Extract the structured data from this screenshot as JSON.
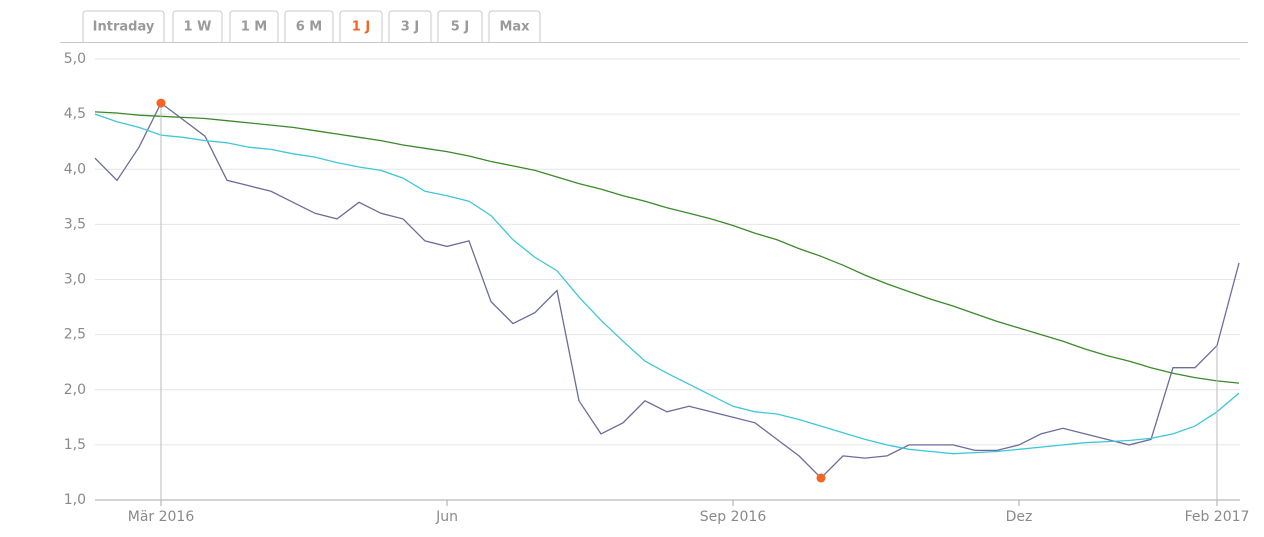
{
  "tabs": [
    "Intraday",
    "1 W",
    "1 M",
    "6 M",
    "1 J",
    "3 J",
    "5 J",
    "Max"
  ],
  "active_tab": 4,
  "chart_data": {
    "type": "line",
    "categories": [
      null,
      null,
      null,
      "Mär 2016",
      null,
      null,
      null,
      null,
      null,
      null,
      null,
      null,
      null,
      null,
      null,
      null,
      "Jun",
      null,
      null,
      null,
      null,
      null,
      null,
      null,
      null,
      null,
      null,
      null,
      null,
      "Sep 2016",
      null,
      null,
      null,
      null,
      null,
      null,
      null,
      null,
      null,
      null,
      null,
      null,
      "Dez",
      null,
      null,
      null,
      null,
      null,
      null,
      null,
      null,
      "Feb 2017",
      null
    ],
    "series": [
      {
        "color": "#6b6d9a",
        "values": [
          4.1,
          3.9,
          4.2,
          4.6,
          4.45,
          4.3,
          3.9,
          3.85,
          3.8,
          3.7,
          3.6,
          3.55,
          3.7,
          3.6,
          3.55,
          3.35,
          3.3,
          3.35,
          2.8,
          2.6,
          2.7,
          2.9,
          1.9,
          1.6,
          1.7,
          1.9,
          1.8,
          1.85,
          1.8,
          1.75,
          1.7,
          1.55,
          1.4,
          1.2,
          1.4,
          1.38,
          1.4,
          1.5,
          1.5,
          1.5,
          1.45,
          1.45,
          1.5,
          1.6,
          1.65,
          1.6,
          1.55,
          1.5,
          1.55,
          2.2,
          2.2,
          2.4,
          3.15
        ]
      },
      {
        "color": "#3a8a2a",
        "values": [
          4.52,
          4.51,
          4.49,
          4.48,
          4.47,
          4.46,
          4.44,
          4.42,
          4.4,
          4.38,
          4.35,
          4.32,
          4.29,
          4.26,
          4.22,
          4.19,
          4.16,
          4.12,
          4.07,
          4.03,
          3.99,
          3.93,
          3.87,
          3.82,
          3.76,
          3.71,
          3.65,
          3.6,
          3.55,
          3.49,
          3.42,
          3.36,
          3.28,
          3.21,
          3.13,
          3.04,
          2.96,
          2.89,
          2.82,
          2.76,
          2.69,
          2.62,
          2.56,
          2.5,
          2.44,
          2.37,
          2.31,
          2.26,
          2.2,
          2.15,
          2.11,
          2.08,
          2.06
        ]
      },
      {
        "color": "#3ec7d8",
        "values": [
          4.5,
          4.43,
          4.38,
          4.31,
          4.29,
          4.26,
          4.24,
          4.2,
          4.18,
          4.14,
          4.11,
          4.06,
          4.02,
          3.99,
          3.92,
          3.8,
          3.76,
          3.71,
          3.58,
          3.36,
          3.2,
          3.08,
          2.84,
          2.63,
          2.44,
          2.26,
          2.15,
          2.05,
          1.95,
          1.85,
          1.8,
          1.78,
          1.73,
          1.67,
          1.61,
          1.55,
          1.5,
          1.46,
          1.44,
          1.42,
          1.43,
          1.44,
          1.46,
          1.48,
          1.5,
          1.52,
          1.53,
          1.54,
          1.56,
          1.6,
          1.67,
          1.8,
          1.97
        ]
      }
    ],
    "marker_color": "#f26522",
    "ylim": [
      1,
      5
    ],
    "yticks": [
      {
        "value": 1,
        "label": "1,0"
      },
      {
        "value": 1.5,
        "label": "1,5"
      },
      {
        "value": 2,
        "label": "2,0"
      },
      {
        "value": 2.5,
        "label": "2,5"
      },
      {
        "value": 3,
        "label": "3,0"
      },
      {
        "value": 3.5,
        "label": "3,5"
      },
      {
        "value": 4,
        "label": "4,0"
      },
      {
        "value": 4.5,
        "label": "4,5"
      },
      {
        "value": 5,
        "label": "5,0"
      }
    ],
    "grid": true
  }
}
